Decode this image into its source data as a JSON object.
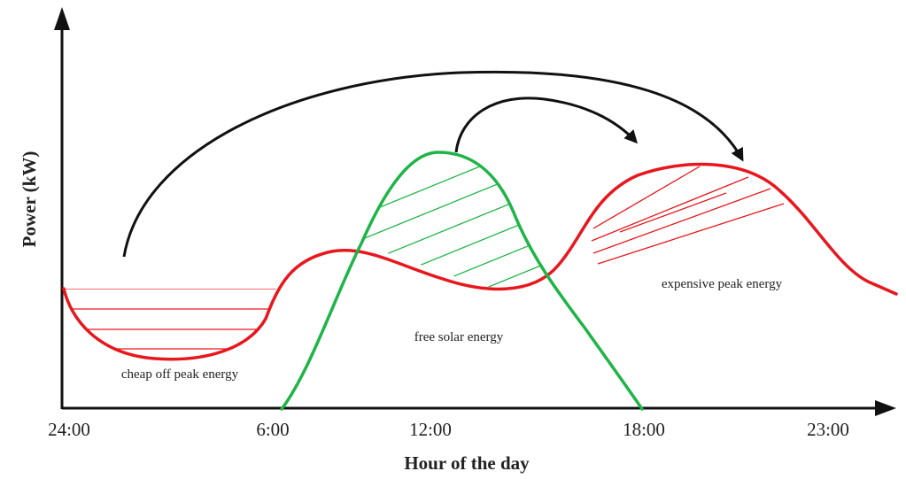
{
  "diagram": {
    "y_axis_title": "Power (kW)",
    "x_axis_title": "Hour of the day",
    "x_ticks": [
      "24:00",
      "6:00",
      "12:00",
      "18:00",
      "23:00"
    ],
    "annotations": {
      "cheap": "cheap off peak energy",
      "solar": "free solar energy",
      "expensive": "expensive peak energy"
    },
    "colors": {
      "load_curve": "#e8171d",
      "solar_curve": "#1fb447",
      "axis": "#111111",
      "arrow": "#111111"
    }
  }
}
